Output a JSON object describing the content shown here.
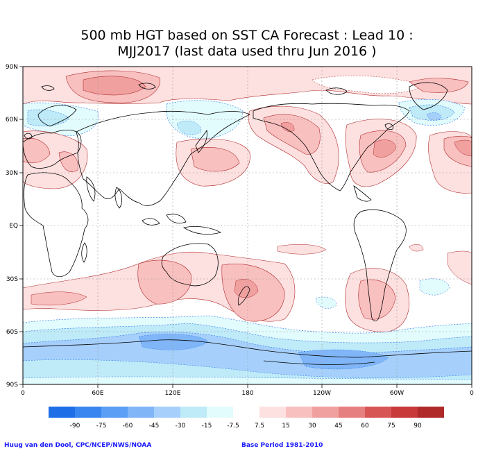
{
  "title": {
    "line1": "500 mb HGT based on SST CA Forecast : Lead 10 :",
    "line2": "MJJ2017 (last data used thru Jun 2016 )"
  },
  "map": {
    "lat_labels": [
      "90N",
      "60N",
      "30N",
      "EQ",
      "30S",
      "60S",
      "90S"
    ],
    "lon_labels": [
      "0",
      "60E",
      "120E",
      "180",
      "120W",
      "60W",
      "0"
    ]
  },
  "legend": {
    "labels": [
      "-90",
      "-75",
      "-60",
      "-45",
      "-30",
      "-15",
      "-7.5",
      "7.5",
      "15",
      "30",
      "45",
      "60",
      "75",
      "90"
    ],
    "colors": [
      "#1e6ee8",
      "#3a86f0",
      "#5a9ef5",
      "#80b6f8",
      "#a6d0fb",
      "#bfeaf8",
      "#e2fbfd",
      "#ffffff",
      "#fde0e0",
      "#f9c0c0",
      "#f1a0a0",
      "#e68080",
      "#d85555",
      "#c83a3a",
      "#b02a2a"
    ]
  },
  "footer": {
    "credit": "Huug van den Dool, CPC/NCEP/NWS/NOAA",
    "base_period": "Base Period 1981-2010"
  }
}
